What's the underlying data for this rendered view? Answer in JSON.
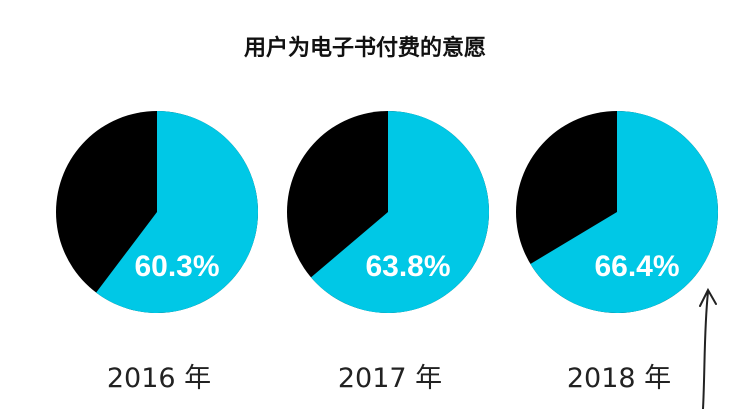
{
  "chart_data": {
    "type": "pie",
    "title": "用户为电子书付费的意愿",
    "colors": {
      "paid": "#00c8e6",
      "unpaid": "#000000"
    },
    "pies": [
      {
        "label": "2016 年",
        "value": 60.3,
        "value_label": "60.3%"
      },
      {
        "label": "2017 年",
        "value": 63.8,
        "value_label": "63.8%"
      },
      {
        "label": "2018 年",
        "value": 66.4,
        "value_label": "66.4%"
      }
    ]
  }
}
